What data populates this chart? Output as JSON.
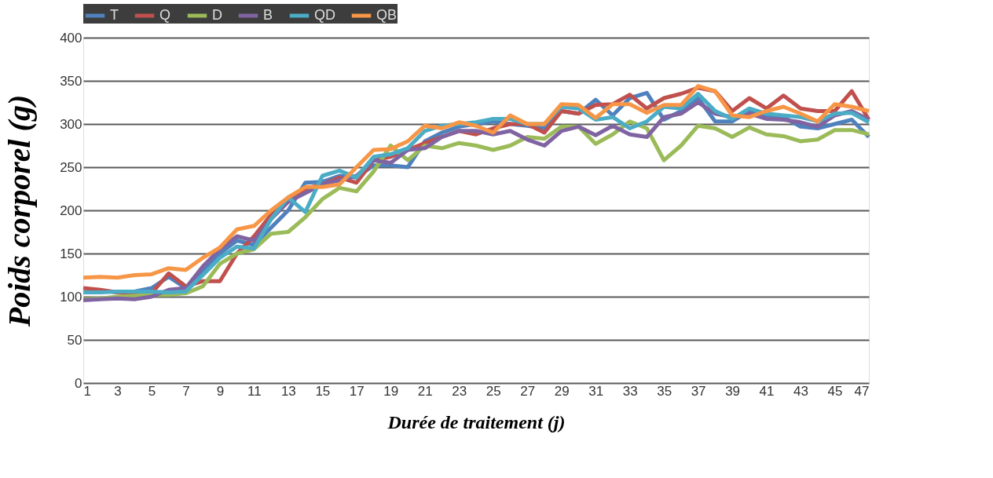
{
  "chart_data": {
    "type": "line",
    "xlabel": "Durée de traitement (j)",
    "ylabel": "Poids corporel (g)",
    "x": [
      1,
      2,
      3,
      4,
      5,
      6,
      7,
      8,
      9,
      10,
      11,
      12,
      13,
      14,
      15,
      16,
      17,
      18,
      19,
      20,
      21,
      22,
      23,
      24,
      25,
      26,
      27,
      28,
      29,
      30,
      31,
      32,
      33,
      34,
      35,
      36,
      37,
      38,
      39,
      40,
      41,
      42,
      43,
      44,
      45,
      46,
      47
    ],
    "series": [
      {
        "name": "T",
        "color": "#4f81bd",
        "values": [
          105,
          107,
          105,
          106,
          110,
          123,
          110,
          130,
          150,
          165,
          160,
          180,
          200,
          232,
          233,
          240,
          238,
          252,
          252,
          250,
          280,
          290,
          297,
          300,
          303,
          300,
          298,
          295,
          315,
          312,
          328,
          310,
          330,
          336,
          305,
          315,
          330,
          303,
          303,
          315,
          310,
          308,
          297,
          295,
          300,
          305,
          285
        ]
      },
      {
        "name": "Q",
        "color": "#c0504d",
        "values": [
          110,
          108,
          105,
          103,
          104,
          127,
          112,
          118,
          118,
          150,
          170,
          195,
          210,
          225,
          230,
          238,
          232,
          258,
          262,
          270,
          278,
          285,
          292,
          288,
          295,
          300,
          300,
          290,
          315,
          312,
          322,
          323,
          334,
          318,
          330,
          335,
          342,
          338,
          315,
          330,
          318,
          333,
          318,
          315,
          315,
          338,
          305
        ]
      },
      {
        "name": "D",
        "color": "#9bbb59",
        "values": [
          97,
          98,
          100,
          101,
          102,
          102,
          104,
          112,
          138,
          150,
          155,
          173,
          175,
          192,
          213,
          226,
          222,
          245,
          275,
          258,
          275,
          272,
          278,
          275,
          270,
          275,
          285,
          283,
          297,
          297,
          277,
          288,
          303,
          295,
          258,
          275,
          298,
          295,
          285,
          296,
          288,
          286,
          280,
          282,
          293,
          293,
          288
        ]
      },
      {
        "name": "B",
        "color": "#8064a2",
        "values": [
          96,
          97,
          98,
          97,
          100,
          108,
          110,
          135,
          155,
          170,
          165,
          190,
          210,
          220,
          230,
          235,
          240,
          258,
          255,
          270,
          272,
          285,
          292,
          292,
          288,
          292,
          282,
          275,
          292,
          297,
          287,
          298,
          288,
          285,
          308,
          312,
          325,
          312,
          308,
          312,
          306,
          305,
          302,
          297,
          310,
          315,
          305
        ]
      },
      {
        "name": "QD",
        "color": "#4bacc6",
        "values": [
          105,
          105,
          106,
          106,
          106,
          105,
          106,
          125,
          145,
          158,
          156,
          190,
          215,
          198,
          240,
          246,
          238,
          262,
          265,
          272,
          292,
          298,
          300,
          302,
          306,
          306,
          300,
          300,
          320,
          318,
          305,
          308,
          295,
          303,
          320,
          318,
          335,
          315,
          306,
          318,
          312,
          310,
          308,
          303,
          312,
          313,
          302
        ]
      },
      {
        "name": "QB",
        "color": "#f79646",
        "values": [
          122,
          123,
          122,
          125,
          126,
          133,
          131,
          145,
          157,
          178,
          182,
          200,
          215,
          227,
          227,
          230,
          250,
          270,
          271,
          280,
          298,
          295,
          302,
          298,
          290,
          310,
          300,
          300,
          323,
          322,
          307,
          323,
          323,
          313,
          322,
          322,
          344,
          338,
          310,
          308,
          315,
          320,
          312,
          303,
          323,
          320,
          315
        ]
      }
    ],
    "xlim": [
      1,
      47
    ],
    "xticks": [
      1,
      3,
      5,
      7,
      9,
      11,
      13,
      15,
      17,
      19,
      21,
      23,
      25,
      27,
      29,
      31,
      33,
      35,
      37,
      39,
      41,
      43,
      45,
      47
    ],
    "ylim": [
      0,
      400
    ],
    "yticks": [
      0,
      50,
      100,
      150,
      200,
      250,
      300,
      350,
      400
    ],
    "grid": "y",
    "legend": "top",
    "marker": "none",
    "line_style": "solid"
  }
}
